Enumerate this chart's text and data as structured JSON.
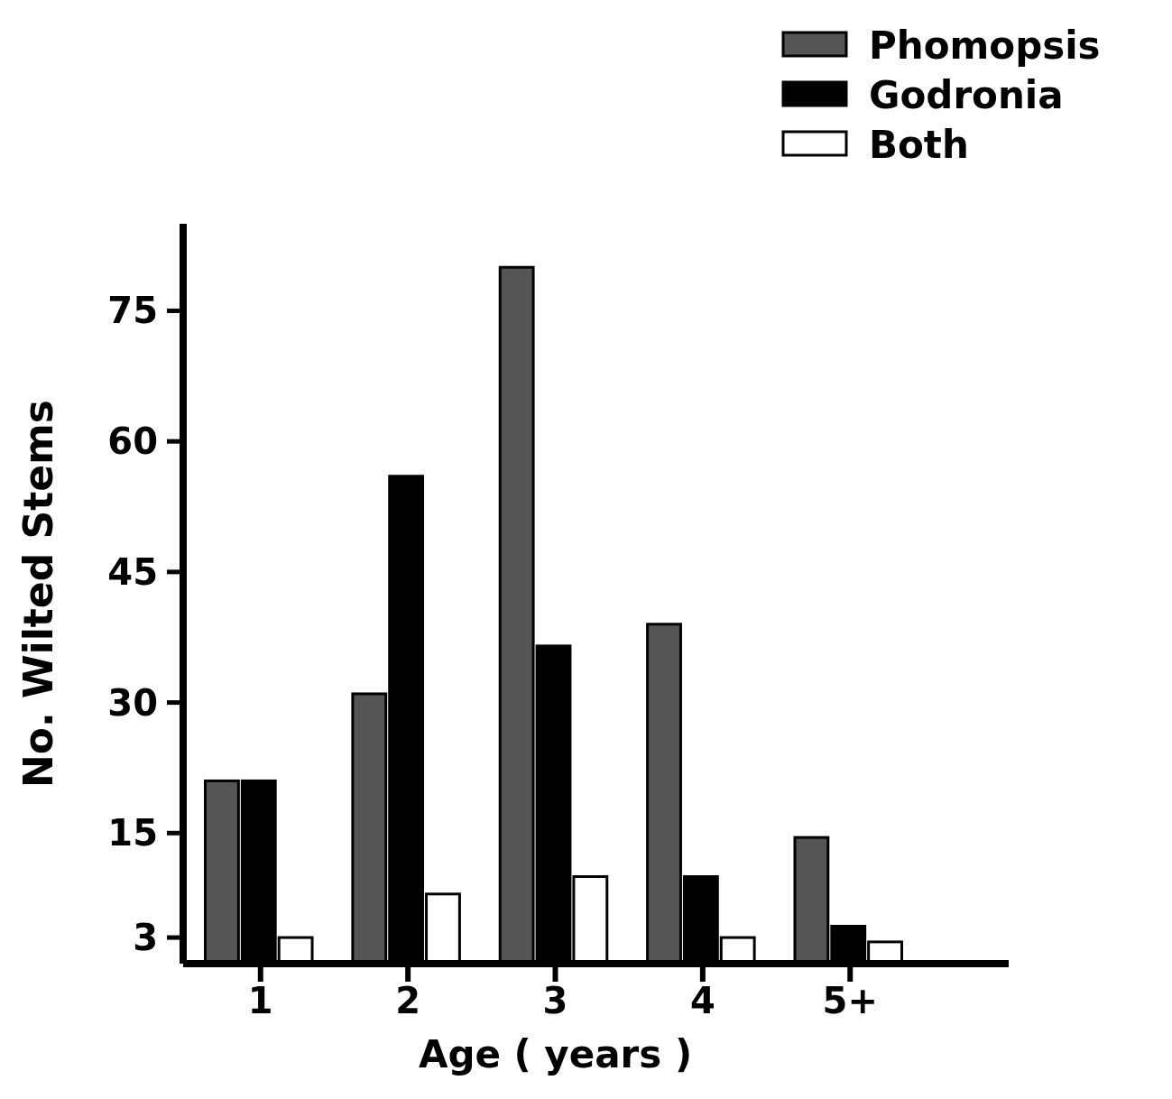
{
  "chart_data": {
    "type": "bar",
    "xlabel": "Age ( years )",
    "ylabel": "No. Wilted Stems",
    "categories": [
      "1",
      "2",
      "3",
      "4",
      "5+"
    ],
    "series": [
      {
        "name": "Phomopsis",
        "color": "#555555",
        "values": [
          21,
          31,
          80,
          39,
          14.5
        ]
      },
      {
        "name": "Godronia",
        "color": "#000000",
        "values": [
          21,
          56,
          36.5,
          10,
          4.3
        ]
      },
      {
        "name": "Both",
        "color": "#ffffff",
        "values": [
          3,
          8,
          10,
          3,
          2.5
        ]
      }
    ],
    "ylim": [
      0,
      85
    ],
    "yticks": [
      3,
      15,
      30,
      45,
      60,
      75
    ],
    "grid": false,
    "legend": "top right"
  }
}
